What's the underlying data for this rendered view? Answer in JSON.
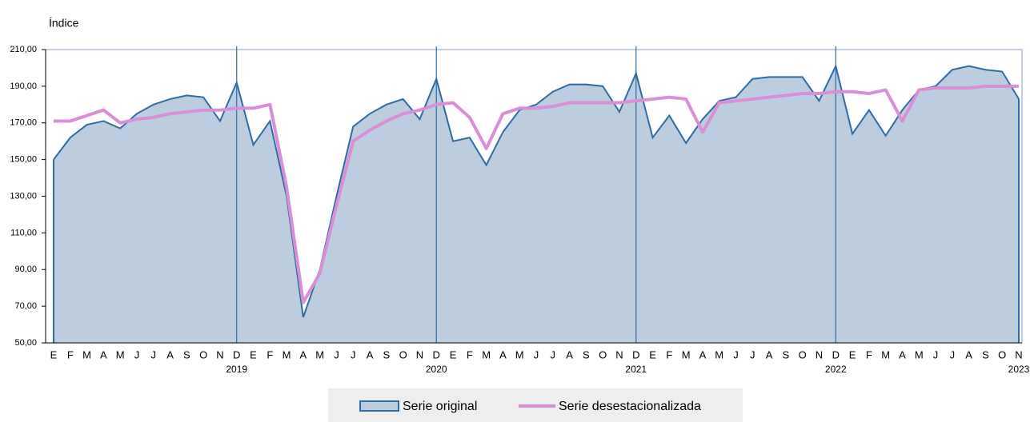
{
  "chart_data": {
    "type": "area-line",
    "y_label": "Índice",
    "categories": [
      "E",
      "F",
      "M",
      "A",
      "M",
      "J",
      "J",
      "A",
      "S",
      "O",
      "N",
      "D",
      "E",
      "F",
      "M",
      "A",
      "M",
      "J",
      "J",
      "A",
      "S",
      "O",
      "N",
      "D",
      "E",
      "F",
      "M",
      "A",
      "M",
      "J",
      "J",
      "A",
      "S",
      "O",
      "N",
      "D",
      "E",
      "F",
      "M",
      "A",
      "M",
      "J",
      "J",
      "A",
      "S",
      "O",
      "N",
      "D",
      "E",
      "F",
      "M",
      "A",
      "M",
      "J",
      "J",
      "A",
      "S",
      "O",
      "N"
    ],
    "years": [
      "2019",
      "2020",
      "2021",
      "2022",
      "2023"
    ],
    "series": [
      {
        "name": "Serie original",
        "color": "#2e6ca4",
        "fill": "#bccddf",
        "values": [
          150,
          162,
          169,
          171,
          167,
          175,
          180,
          183,
          185,
          184,
          171,
          192,
          158,
          171,
          130,
          64,
          90,
          130,
          168,
          175,
          180,
          183,
          172,
          194,
          160,
          162,
          147,
          165,
          177,
          180,
          187,
          191,
          191,
          190,
          176,
          197,
          162,
          174,
          159,
          172,
          182,
          184,
          194,
          195,
          195,
          195,
          182,
          201,
          164,
          177,
          163,
          177,
          188,
          190,
          199,
          201,
          199,
          198,
          183
        ]
      },
      {
        "name": "Serie desestacionalizada",
        "color": "#d98fd6",
        "values": [
          171,
          171,
          174,
          177,
          170,
          172,
          173,
          175,
          176,
          177,
          177,
          178,
          178,
          180,
          135,
          72,
          88,
          125,
          160,
          166,
          171,
          175,
          177,
          180,
          181,
          173,
          156,
          175,
          178,
          178,
          179,
          181,
          181,
          181,
          181,
          182,
          183,
          184,
          183,
          165,
          181,
          182,
          183,
          184,
          185,
          186,
          186,
          187,
          187,
          186,
          188,
          171,
          188,
          189,
          189,
          189,
          190,
          190,
          190
        ]
      }
    ],
    "ylim": [
      50,
      210
    ],
    "yticks": [
      {
        "value": 50,
        "label": "50,00"
      },
      {
        "value": 70,
        "label": "70,00"
      },
      {
        "value": 90,
        "label": "90,00"
      },
      {
        "value": 110,
        "label": "110,00"
      },
      {
        "value": 130,
        "label": "130,00"
      },
      {
        "value": 150,
        "label": "150,00"
      },
      {
        "value": 170,
        "label": "170,00"
      },
      {
        "value": 190,
        "label": "190,00"
      },
      {
        "value": 210,
        "label": "210,00"
      }
    ],
    "legend": "bottom"
  }
}
